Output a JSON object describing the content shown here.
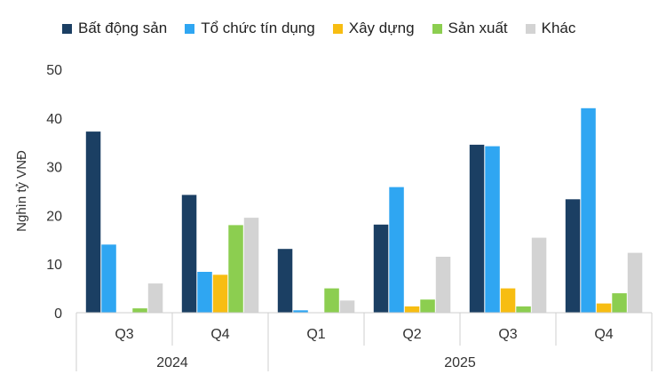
{
  "chart_data": {
    "type": "bar",
    "title": "",
    "ylabel": "Nghìn tỷ VNĐ",
    "xlabel": "",
    "ylim": [
      0,
      50
    ],
    "yticks": [
      0,
      10,
      20,
      30,
      40,
      50
    ],
    "categories": [
      "Q3",
      "Q4",
      "Q1",
      "Q2",
      "Q3",
      "Q4"
    ],
    "groups": [
      {
        "label": "2024",
        "count": 2
      },
      {
        "label": "2025",
        "count": 4
      }
    ],
    "legend_position": "top",
    "series": [
      {
        "name": "Bất động sản",
        "color": "#1b3f63",
        "values": [
          37.2,
          24.2,
          13.1,
          18.1,
          34.5,
          23.3
        ]
      },
      {
        "name": "Tổ chức tín dụng",
        "color": "#2fa6f2",
        "values": [
          14.0,
          8.4,
          0.5,
          25.8,
          34.2,
          42.0
        ]
      },
      {
        "name": "Xây dựng",
        "color": "#f7bd12",
        "values": [
          0.0,
          7.8,
          0.0,
          1.3,
          5.0,
          1.9
        ]
      },
      {
        "name": "Sản xuất",
        "color": "#8cce50",
        "values": [
          0.9,
          18.0,
          5.0,
          2.7,
          1.3,
          4.0
        ]
      },
      {
        "name": "Khác",
        "color": "#d3d3d3",
        "values": [
          6.0,
          19.5,
          2.5,
          11.5,
          15.4,
          12.3
        ]
      }
    ]
  }
}
